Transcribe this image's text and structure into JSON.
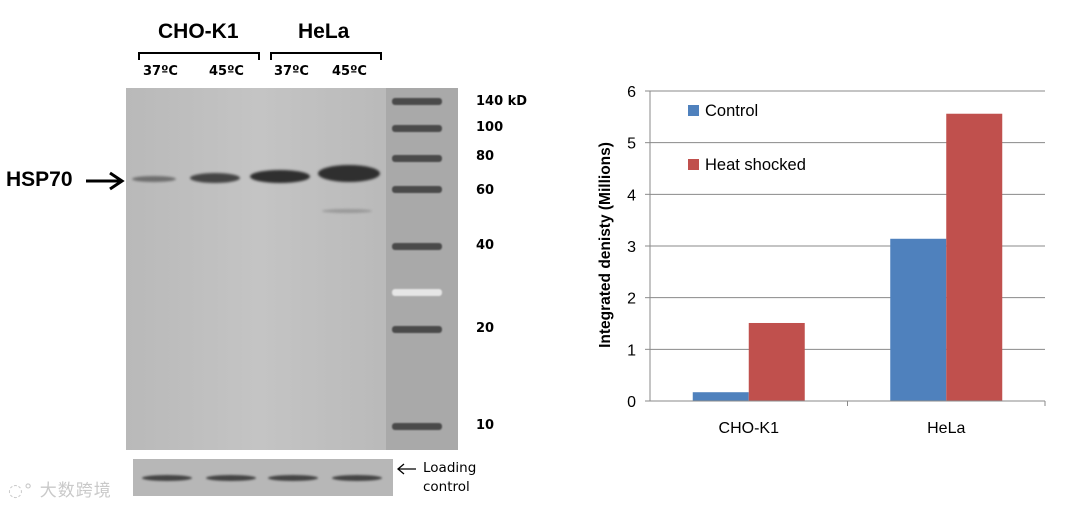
{
  "blot": {
    "groups": [
      "CHO-K1",
      "HeLa"
    ],
    "lanes": [
      "37ºC",
      "45ºC",
      "37ºC",
      "45ºC"
    ],
    "protein_label": "HSP70",
    "markers": [
      "140 kD",
      "100",
      "80",
      "60",
      "40",
      "20",
      "10"
    ],
    "loading_label_line1": "Loading",
    "loading_label_line2": "control",
    "watermark": "大数跨境"
  },
  "colors": {
    "control": "#4f81bd",
    "heat_shocked": "#c0504d",
    "blot_band": "#2f2f2f"
  },
  "chart_data": {
    "type": "bar",
    "categories": [
      "CHO-K1",
      "HeLa"
    ],
    "series": [
      {
        "name": "Control",
        "values": [
          0.17,
          3.14
        ]
      },
      {
        "name": "Heat shocked",
        "values": [
          1.51,
          5.56
        ]
      }
    ],
    "title": "",
    "xlabel": "",
    "ylabel": "Integrated denisty (Millions)",
    "ylim": [
      0,
      6
    ],
    "yticks": [
      "0",
      "1",
      "2",
      "3",
      "4",
      "5",
      "6"
    ],
    "grid": true,
    "legend": "top-left"
  }
}
